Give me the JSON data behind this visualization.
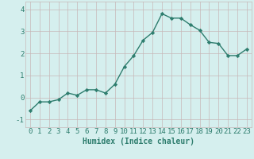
{
  "x": [
    0,
    1,
    2,
    3,
    4,
    5,
    6,
    7,
    8,
    9,
    10,
    11,
    12,
    13,
    14,
    15,
    16,
    17,
    18,
    19,
    20,
    21,
    22,
    23
  ],
  "y": [
    -0.6,
    -0.2,
    -0.2,
    -0.1,
    0.2,
    0.1,
    0.35,
    0.35,
    0.2,
    0.6,
    1.4,
    1.9,
    2.6,
    2.95,
    3.8,
    3.6,
    3.6,
    3.3,
    3.05,
    2.5,
    2.45,
    1.9,
    1.9,
    2.2
  ],
  "line_color": "#2e7d6e",
  "marker": "D",
  "markersize": 2.2,
  "linewidth": 1.0,
  "xlabel": "Humidex (Indice chaleur)",
  "xlim": [
    -0.5,
    23.5
  ],
  "ylim": [
    -1.35,
    4.35
  ],
  "yticks": [
    -1,
    0,
    1,
    2,
    3,
    4
  ],
  "xticks": [
    0,
    1,
    2,
    3,
    4,
    5,
    6,
    7,
    8,
    9,
    10,
    11,
    12,
    13,
    14,
    15,
    16,
    17,
    18,
    19,
    20,
    21,
    22,
    23
  ],
  "bg_color": "#d5efee",
  "grid_color": "#c8b8b8",
  "tick_color": "#2e7d6e",
  "label_color": "#2e7d6e",
  "xlabel_fontsize": 7,
  "tick_fontsize": 6.5
}
